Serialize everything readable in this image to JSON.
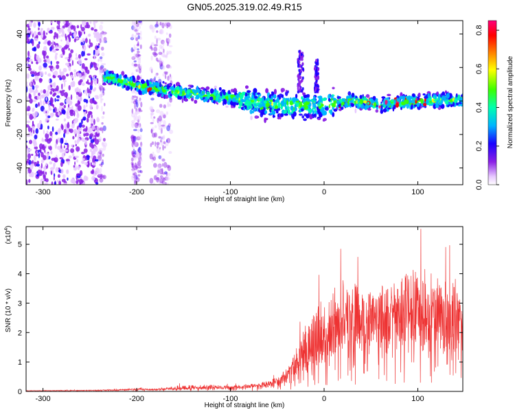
{
  "title": "GN05.2025.319.02.49.R15",
  "chart_data": [
    {
      "type": "heatmap",
      "xlabel": "Height of straight line (km)",
      "ylabel": "Frequency (Hz)",
      "xlim": [
        -318,
        148
      ],
      "ylim": [
        -50,
        48
      ],
      "xticks": [
        -300,
        -200,
        -100,
        0,
        100
      ],
      "yticks": [
        -40,
        -20,
        0,
        20,
        40
      ],
      "colorbar": {
        "label": "Normalized spectral amplitude",
        "range": [
          0.0,
          0.85
        ],
        "ticks": [
          0.0,
          0.2,
          0.4,
          0.6,
          0.8
        ],
        "colormap": [
          "#ffffff",
          "#e7c8ff",
          "#8a1fe6",
          "#1a00ff",
          "#00b4ff",
          "#00ffb0",
          "#3cff00",
          "#ffff00",
          "#ff7a00",
          "#ff0000",
          "#ff007a"
        ]
      },
      "ridge": {
        "x": [
          -230,
          -200,
          -150,
          -100,
          -60,
          -30,
          0,
          30,
          60,
          100,
          148
        ],
        "center_freq": [
          14,
          9,
          5,
          2,
          -2,
          -3,
          -2,
          0,
          -2,
          0,
          1
        ]
      }
    },
    {
      "type": "line",
      "xlabel": "Height of straight line (km)",
      "ylabel": "SNR (10 * v/v)",
      "scale_note": "(x10",
      "scale_exp": "4",
      "xlim": [
        -318,
        148
      ],
      "ylim": [
        0,
        5.6
      ],
      "xticks": [
        -300,
        -200,
        -100,
        0,
        100
      ],
      "yticks": [
        0,
        1,
        2,
        3,
        4,
        5
      ],
      "color": "#ee3333",
      "envelope": {
        "x": [
          -318,
          -250,
          -210,
          -200,
          -180,
          -150,
          -120,
          -100,
          -70,
          -50,
          -40,
          -30,
          -20,
          -10,
          0,
          20,
          30,
          50,
          70,
          100,
          130,
          148
        ],
        "mean": [
          0.02,
          0.03,
          0.05,
          0.07,
          0.06,
          0.1,
          0.12,
          0.12,
          0.18,
          0.3,
          0.5,
          0.8,
          1.1,
          1.3,
          1.7,
          2.1,
          2.3,
          2.4,
          2.4,
          2.3,
          2.2,
          2.3
        ],
        "peak": [
          0.04,
          0.06,
          0.1,
          0.2,
          0.12,
          0.3,
          0.3,
          0.25,
          0.35,
          0.6,
          1.0,
          1.9,
          3.0,
          3.6,
          4.4,
          4.9,
          4.6,
          4.5,
          4.4,
          5.6,
          4.9,
          5.2
        ]
      }
    }
  ]
}
